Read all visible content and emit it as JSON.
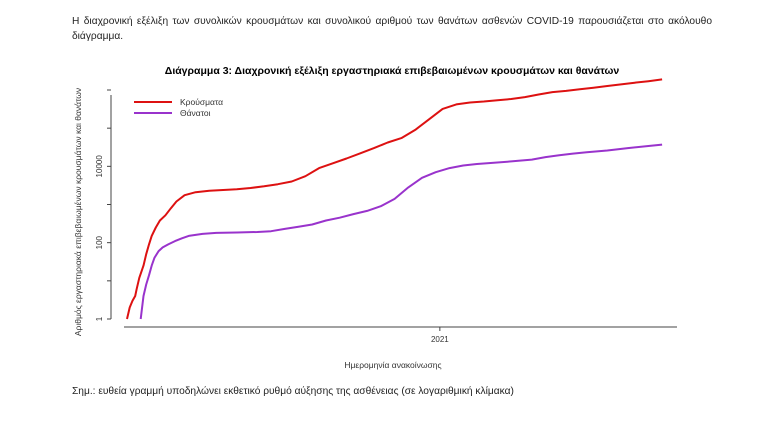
{
  "intro_text": "Η διαχρονική εξέλιξη των συνολικών κρουσμάτων και συνολικού αριθμού των θανάτων ασθενών COVID-19 παρουσιάζεται στο ακόλουθο διάγραμμα.",
  "note_text": "Σημ.: ευθεία γραμμή υποδηλώνει εκθετικό ρυθμό αύξησης της ασθένειας (σε λογαριθμική κλίμακα)",
  "chart_data": {
    "type": "line",
    "title": "Διάγραμμα 3: Διαχρονική εξέλιξη εργαστηριακά επιβεβαιωμένων κρουσμάτων και θανάτων",
    "xlabel": "Ημερομηνία ανακοίνωσης",
    "ylabel": "Αριθμός εργαστηριακά επιβεβαιωμένων κρουσμάτων και θανάτων",
    "x_ticks": [
      "2021"
    ],
    "x_unit": "days since start of the plotted period",
    "x_range": [
      0,
      395
    ],
    "x_tick_positions": [
      228
    ],
    "yscale": "log",
    "y_ticks": [
      "1",
      "100",
      "10000"
    ],
    "ylim": [
      1,
      1000000
    ],
    "legend_position": "top-left",
    "series": [
      {
        "name": "Κρούσματα",
        "color": "#dd1111",
        "points": [
          [
            0,
            1
          ],
          [
            2,
            2
          ],
          [
            4,
            3
          ],
          [
            6,
            4
          ],
          [
            7,
            6
          ],
          [
            9,
            12
          ],
          [
            12,
            25
          ],
          [
            14,
            50
          ],
          [
            16,
            90
          ],
          [
            18,
            150
          ],
          [
            21,
            250
          ],
          [
            24,
            380
          ],
          [
            28,
            520
          ],
          [
            32,
            800
          ],
          [
            36,
            1200
          ],
          [
            42,
            1750
          ],
          [
            50,
            2100
          ],
          [
            60,
            2300
          ],
          [
            70,
            2400
          ],
          [
            80,
            2500
          ],
          [
            90,
            2700
          ],
          [
            100,
            3000
          ],
          [
            110,
            3400
          ],
          [
            120,
            4000
          ],
          [
            130,
            5500
          ],
          [
            140,
            9000
          ],
          [
            150,
            12000
          ],
          [
            160,
            16000
          ],
          [
            170,
            22000
          ],
          [
            180,
            30000
          ],
          [
            190,
            42000
          ],
          [
            200,
            55000
          ],
          [
            210,
            90000
          ],
          [
            220,
            170000
          ],
          [
            230,
            320000
          ],
          [
            240,
            420000
          ],
          [
            250,
            470000
          ],
          [
            260,
            500000
          ],
          [
            270,
            540000
          ],
          [
            280,
            580000
          ],
          [
            290,
            650000
          ],
          [
            300,
            760000
          ],
          [
            310,
            880000
          ],
          [
            320,
            950000
          ],
          [
            330,
            1050000
          ],
          [
            340,
            1150000
          ],
          [
            350,
            1270000
          ],
          [
            360,
            1400000
          ],
          [
            370,
            1550000
          ],
          [
            380,
            1700000
          ],
          [
            390,
            1900000
          ]
        ]
      },
      {
        "name": "Θάνατοι",
        "color": "#9933cc",
        "points": [
          [
            10,
            1
          ],
          [
            12,
            4
          ],
          [
            14,
            8
          ],
          [
            16,
            14
          ],
          [
            18,
            25
          ],
          [
            20,
            40
          ],
          [
            23,
            60
          ],
          [
            26,
            75
          ],
          [
            30,
            90
          ],
          [
            35,
            110
          ],
          [
            40,
            130
          ],
          [
            45,
            150
          ],
          [
            55,
            170
          ],
          [
            65,
            180
          ],
          [
            80,
            185
          ],
          [
            95,
            190
          ],
          [
            105,
            200
          ],
          [
            115,
            230
          ],
          [
            125,
            260
          ],
          [
            135,
            300
          ],
          [
            145,
            380
          ],
          [
            155,
            450
          ],
          [
            165,
            560
          ],
          [
            175,
            680
          ],
          [
            185,
            900
          ],
          [
            195,
            1400
          ],
          [
            205,
            2800
          ],
          [
            215,
            5000
          ],
          [
            225,
            7000
          ],
          [
            235,
            9000
          ],
          [
            245,
            10500
          ],
          [
            255,
            11500
          ],
          [
            265,
            12200
          ],
          [
            280,
            13500
          ],
          [
            295,
            15000
          ],
          [
            305,
            17500
          ],
          [
            315,
            19500
          ],
          [
            325,
            21500
          ],
          [
            335,
            23500
          ],
          [
            350,
            26000
          ],
          [
            365,
            30000
          ],
          [
            380,
            34000
          ],
          [
            390,
            37000
          ]
        ]
      }
    ]
  }
}
